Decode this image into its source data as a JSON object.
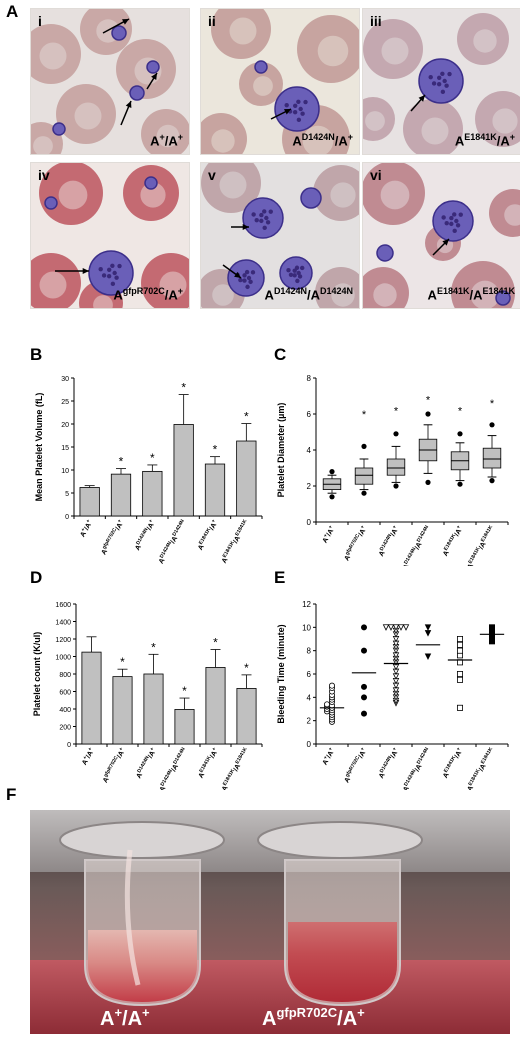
{
  "panels": {
    "A": "A",
    "B": "B",
    "C": "C",
    "D": "D",
    "E": "E",
    "F": "F"
  },
  "micrographs": [
    {
      "numeral": "i",
      "base": "A",
      "sup1": "+",
      "mid": "/A",
      "sup2": "+",
      "bg": "#e6e0de",
      "rbc": "#c9a8a6"
    },
    {
      "numeral": "ii",
      "base": "A",
      "sup1": "D1424N",
      "mid": "/A",
      "sup2": "+",
      "bg": "#ebe6dc",
      "rbc": "#c7a4a0"
    },
    {
      "numeral": "iii",
      "base": "A",
      "sup1": "E1841K",
      "mid": "/A",
      "sup2": "+",
      "bg": "#e7e2e2",
      "rbc": "#c4a8b0"
    },
    {
      "numeral": "iv",
      "base": "A",
      "sup1": "gfpR702C",
      "mid": "/A",
      "sup2": "+",
      "bg": "#efe7e4",
      "rbc": "#c46a72"
    },
    {
      "numeral": "v",
      "base": "A",
      "sup1": "D1424N",
      "mid": "/A",
      "sup2": "D1424N",
      "bg": "#e3e0e0",
      "rbc": "#c0a6aa"
    },
    {
      "numeral": "vi",
      "base": "A",
      "sup1": "E1841K",
      "mid": "/A",
      "sup2": "E1841K",
      "bg": "#ece5e6",
      "rbc": "#c08b92"
    }
  ],
  "tube_labels": [
    {
      "base": "A",
      "sup1": "+",
      "mid": "/A",
      "sup2": "+"
    },
    {
      "base": "A",
      "sup1": "gfpR702C",
      "mid": "/A",
      "sup2": "+"
    }
  ],
  "categories": [
    {
      "b": "A",
      "s1": "+",
      "m": "/A",
      "s2": "+"
    },
    {
      "b": "A",
      "s1": "gfpR702C",
      "m": "/A",
      "s2": "+"
    },
    {
      "b": "A",
      "s1": "D1424N",
      "m": "/A",
      "s2": "+"
    },
    {
      "b": "A",
      "s1": "D1424N",
      "m": "/A",
      "s2": "D1424N"
    },
    {
      "b": "A",
      "s1": "E1841K",
      "m": "/A",
      "s2": "+"
    },
    {
      "b": "A",
      "s1": "E1841K",
      "m": "/A",
      "s2": "E1841K"
    }
  ],
  "colors": {
    "bar": "#c0c0c0",
    "box": "#c0c0c0",
    "axis": "#000000"
  },
  "chart_data": [
    {
      "panel": "B",
      "type": "bar",
      "ylabel": "Mean Platelet Volume (fL)",
      "ylim": [
        0,
        30
      ],
      "yticks": [
        0,
        5,
        10,
        15,
        20,
        25,
        30
      ],
      "values": [
        6.2,
        9.1,
        9.7,
        19.9,
        11.3,
        16.3
      ],
      "errors": [
        0.4,
        1.2,
        1.4,
        6.5,
        1.6,
        3.8
      ],
      "significant": [
        "",
        "*",
        "*",
        "*",
        "*",
        "*"
      ]
    },
    {
      "panel": "C",
      "type": "box",
      "ylabel": "Platelet Diameter (µm)",
      "ylim": [
        0,
        8
      ],
      "yticks": [
        0,
        2,
        4,
        6,
        8
      ],
      "boxes": [
        {
          "w_lo": 1.6,
          "q1": 1.8,
          "median": 2.1,
          "q3": 2.4,
          "w_hi": 2.6,
          "out_lo": 1.4,
          "out_hi": 2.8
        },
        {
          "w_lo": 1.8,
          "q1": 2.1,
          "median": 2.6,
          "q3": 3.0,
          "w_hi": 3.5,
          "out_lo": 1.6,
          "out_hi": 4.2
        },
        {
          "w_lo": 2.2,
          "q1": 2.6,
          "median": 3.0,
          "q3": 3.5,
          "w_hi": 4.2,
          "out_lo": 2.0,
          "out_hi": 4.9
        },
        {
          "w_lo": 2.7,
          "q1": 3.4,
          "median": 4.0,
          "q3": 4.6,
          "w_hi": 5.4,
          "out_lo": 2.2,
          "out_hi": 6.0
        },
        {
          "w_lo": 2.3,
          "q1": 2.9,
          "median": 3.4,
          "q3": 3.9,
          "w_hi": 4.4,
          "out_lo": 2.1,
          "out_hi": 4.9
        },
        {
          "w_lo": 2.5,
          "q1": 3.0,
          "median": 3.5,
          "q3": 4.1,
          "w_hi": 4.8,
          "out_lo": 2.3,
          "out_hi": 5.4
        }
      ],
      "significant": [
        "",
        "*",
        "*",
        "*",
        "*",
        "*"
      ],
      "star_y": [
        null,
        6.0,
        6.2,
        6.8,
        6.2,
        6.6
      ]
    },
    {
      "panel": "D",
      "type": "bar",
      "ylabel": "Platelet count (K/ul)",
      "ylim": [
        0,
        1600
      ],
      "yticks": [
        0,
        200,
        400,
        600,
        800,
        1000,
        1200,
        1400,
        1600
      ],
      "values": [
        1050,
        770,
        800,
        395,
        875,
        635
      ],
      "errors": [
        175,
        85,
        225,
        130,
        205,
        155
      ],
      "significant": [
        "",
        "*",
        "*",
        "*",
        "*",
        "*"
      ]
    },
    {
      "panel": "E",
      "type": "scatter",
      "ylabel": "Bleeding Time (minute)",
      "ylim": [
        0,
        12
      ],
      "yticks": [
        0,
        2,
        4,
        6,
        8,
        10,
        12
      ],
      "means": [
        3.1,
        6.1,
        6.9,
        8.5,
        7.2,
        9.4
      ],
      "markers": [
        "circle-open",
        "circle-filled",
        "triangle-down-open",
        "triangle-down-filled",
        "square-open",
        "square-filled"
      ],
      "points": [
        [
          1.9,
          2.1,
          2.3,
          2.5,
          2.7,
          2.8,
          2.9,
          3.0,
          3.1,
          3.2,
          3.3,
          3.4,
          3.6,
          3.8,
          4.0,
          4.2,
          4.5,
          4.8,
          5.0
        ],
        [
          2.6,
          4.0,
          4.9,
          8.0,
          10.0
        ],
        [
          3.5,
          3.7,
          4.0,
          4.3,
          4.6,
          5.0,
          5.4,
          5.8,
          6.2,
          6.6,
          7.0,
          7.3,
          7.6,
          8.0,
          8.3,
          8.6,
          9.0,
          9.4,
          9.7,
          10.0,
          10.0,
          10.0,
          10.0,
          10.0
        ],
        [
          7.5,
          9.5,
          10.0
        ],
        [
          3.1,
          5.5,
          6.0,
          7.0,
          7.6,
          8.0,
          8.5,
          9.0
        ],
        [
          8.8,
          9.2,
          9.6,
          10.0
        ]
      ]
    }
  ]
}
